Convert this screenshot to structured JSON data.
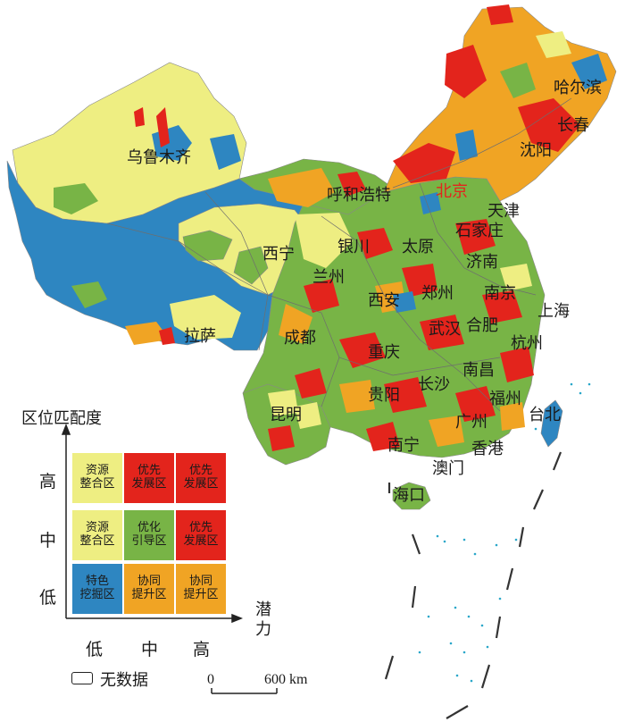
{
  "cities": [
    {
      "name": "乌鲁木齐"
    },
    {
      "name": "哈尔滨"
    },
    {
      "name": "长春"
    },
    {
      "name": "沈阳"
    },
    {
      "name": "呼和浩特"
    },
    {
      "name": "北京"
    },
    {
      "name": "天津"
    },
    {
      "name": "石家庄"
    },
    {
      "name": "银川"
    },
    {
      "name": "太原"
    },
    {
      "name": "西宁"
    },
    {
      "name": "济南"
    },
    {
      "name": "兰州"
    },
    {
      "name": "西安"
    },
    {
      "name": "郑州"
    },
    {
      "name": "南京"
    },
    {
      "name": "上海"
    },
    {
      "name": "合肥"
    },
    {
      "name": "武汉"
    },
    {
      "name": "拉萨"
    },
    {
      "name": "成都"
    },
    {
      "name": "杭州"
    },
    {
      "name": "重庆"
    },
    {
      "name": "南昌"
    },
    {
      "name": "长沙"
    },
    {
      "name": "福州"
    },
    {
      "name": "贵阳"
    },
    {
      "name": "台北"
    },
    {
      "name": "昆明"
    },
    {
      "name": "广州"
    },
    {
      "name": "南宁"
    },
    {
      "name": "香港"
    },
    {
      "name": "澳门"
    },
    {
      "name": "海口"
    }
  ],
  "legend": {
    "y_axis_title": "区位匹配度",
    "x_axis_title": "潜力",
    "y_ticks": [
      "高",
      "中",
      "低"
    ],
    "x_ticks": [
      "低",
      "中",
      "高"
    ],
    "cells": [
      {
        "row": "高",
        "col": "低",
        "line1": "资源",
        "line2": "整合区",
        "color": "#eeee82"
      },
      {
        "row": "高",
        "col": "中",
        "line1": "优先",
        "line2": "发展区",
        "color": "#e3241c"
      },
      {
        "row": "高",
        "col": "高",
        "line1": "优先",
        "line2": "发展区",
        "color": "#e3241c"
      },
      {
        "row": "中",
        "col": "低",
        "line1": "资源",
        "line2": "整合区",
        "color": "#eeee82"
      },
      {
        "row": "中",
        "col": "中",
        "line1": "优化",
        "line2": "引导区",
        "color": "#78b446"
      },
      {
        "row": "中",
        "col": "高",
        "line1": "优先",
        "line2": "发展区",
        "color": "#e3241c"
      },
      {
        "row": "低",
        "col": "低",
        "line1": "特色",
        "line2": "挖掘区",
        "color": "#2e86c1"
      },
      {
        "row": "低",
        "col": "中",
        "line1": "协同",
        "line2": "提升区",
        "color": "#f0a424"
      },
      {
        "row": "低",
        "col": "高",
        "line1": "协同",
        "line2": "提升区",
        "color": "#f0a424"
      }
    ],
    "no_data_label": "无数据"
  },
  "scale": {
    "start": "0",
    "end": "600 km"
  },
  "colors": {
    "resource_integration": "#eeee82",
    "priority_development": "#e3241c",
    "optimization_guidance": "#78b446",
    "feature_mining": "#2e86c1",
    "coordinated_improvement": "#f0a424",
    "boundary": "#7a7a7a",
    "islands": "#2aa7c9"
  }
}
